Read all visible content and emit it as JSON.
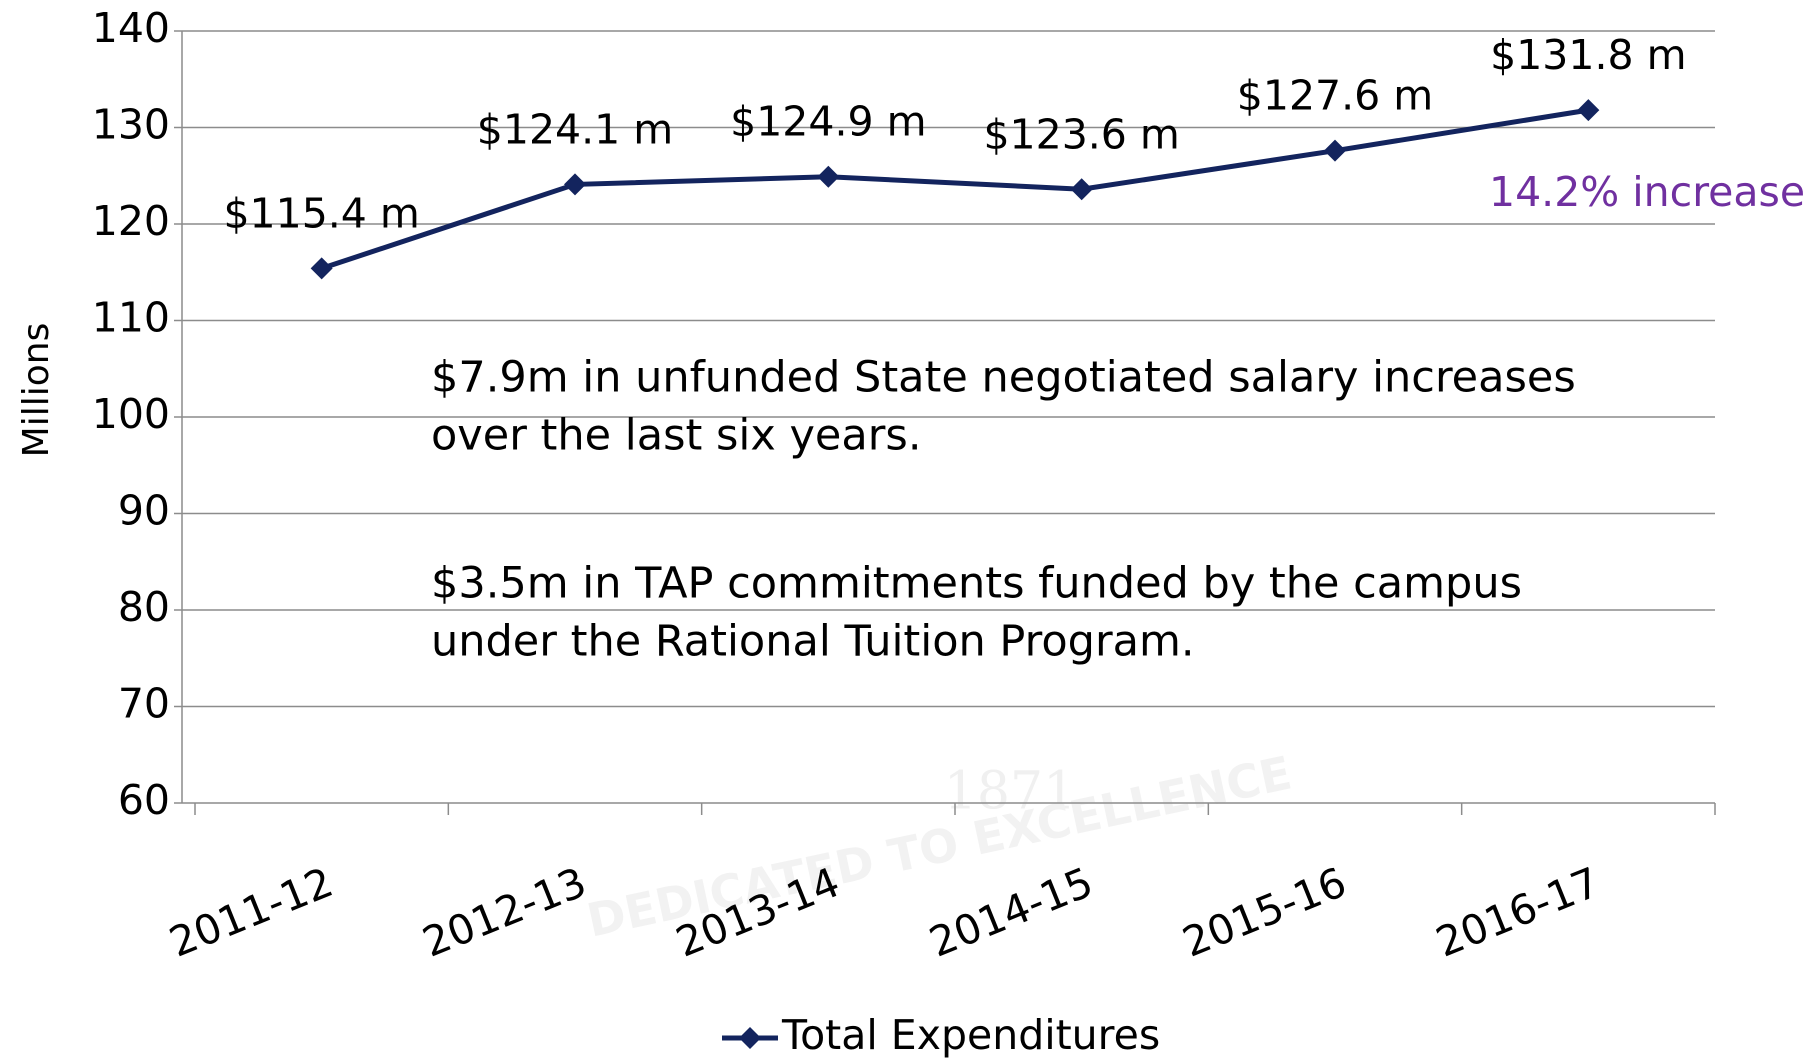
{
  "chart_data": {
    "type": "line",
    "y_label": "Millions",
    "categories": [
      "2011-12",
      "2012-13",
      "2013-14",
      "2014-15",
      "2015-16",
      "2016-17"
    ],
    "series": [
      {
        "name": "Total Expenditures",
        "color": "#13245e",
        "values": [
          115.4,
          124.1,
          124.9,
          123.6,
          127.6,
          131.8
        ],
        "value_labels": [
          "$115.4 m",
          "$124.1 m",
          "$124.9 m",
          "$123.6 m",
          "$127.6 m",
          "$131.8 m"
        ]
      }
    ],
    "ylim": [
      60,
      140
    ],
    "yticks": [
      60,
      70,
      80,
      90,
      100,
      110,
      120,
      130,
      140
    ],
    "grid": true,
    "legend": "bottom",
    "highlight": {
      "text": "14.2% increase",
      "color": "#7030a0"
    },
    "notes": [
      [
        "$7.9m in unfunded State negotiated salary increases",
        "over the last six years."
      ],
      [
        "$3.5m in TAP commitments funded by the campus",
        "under the Rational Tuition Program."
      ]
    ],
    "watermark": {
      "year": "1871",
      "motto": "DEDICATED TO EXCELLENCE"
    }
  }
}
